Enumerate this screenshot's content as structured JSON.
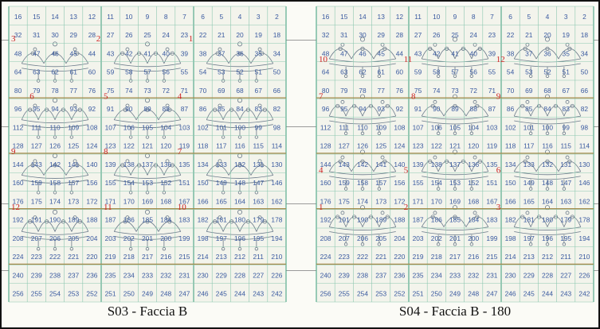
{
  "sheets": [
    {
      "id": "left",
      "caption": "S03 - Faccia B",
      "labels": [
        {
          "text": "3",
          "row": 1.5,
          "col": 0
        },
        {
          "text": "2",
          "row": 1.5,
          "col": 4.6
        },
        {
          "text": "1",
          "row": 1.5,
          "col": 9.6
        },
        {
          "text": "6",
          "row": 4.6,
          "col": 1
        },
        {
          "text": "5",
          "row": 4.6,
          "col": 5
        },
        {
          "text": "4",
          "row": 4.6,
          "col": 9
        },
        {
          "text": "9",
          "row": 7.6,
          "col": 0
        },
        {
          "text": "8",
          "row": 7.6,
          "col": 5
        },
        {
          "text": "7",
          "row": 7.6,
          "col": 9
        },
        {
          "text": "12",
          "row": 10.6,
          "col": 0
        },
        {
          "text": "11",
          "row": 10.6,
          "col": 5
        },
        {
          "text": "10",
          "row": 10.6,
          "col": 9
        }
      ]
    },
    {
      "id": "right",
      "caption": "S04 - Faccia B - 180",
      "labels": [
        {
          "text": "10",
          "row": 2.6,
          "col": 0
        },
        {
          "text": "11",
          "row": 2.6,
          "col": 4.6
        },
        {
          "text": "12",
          "row": 2.6,
          "col": 9.6
        },
        {
          "text": "7",
          "row": 4.6,
          "col": 0
        },
        {
          "text": "8",
          "row": 4.6,
          "col": 5
        },
        {
          "text": "9",
          "row": 4.6,
          "col": 9.6
        },
        {
          "text": "4",
          "row": 8.6,
          "col": 0
        },
        {
          "text": "5",
          "row": 8.6,
          "col": 4.6
        },
        {
          "text": "6",
          "row": 8.6,
          "col": 9.6
        },
        {
          "text": "1",
          "row": 10.6,
          "col": 0
        },
        {
          "text": "2",
          "row": 10.6,
          "col": 4.6
        },
        {
          "text": "3",
          "row": 10.6,
          "col": 9.6
        }
      ]
    }
  ],
  "grid": {
    "columns": 15,
    "rows": 16,
    "numbering": "row r: 16r+16 down to 16r+1"
  },
  "colors": {
    "grid_line": "#8cc7b0",
    "grid_line_strong": "#4aa585",
    "number_text": "#3a5aa0",
    "label_red": "#cc2222",
    "motif_stroke": "#6a7a8a",
    "band_line": "#a58a4a"
  }
}
